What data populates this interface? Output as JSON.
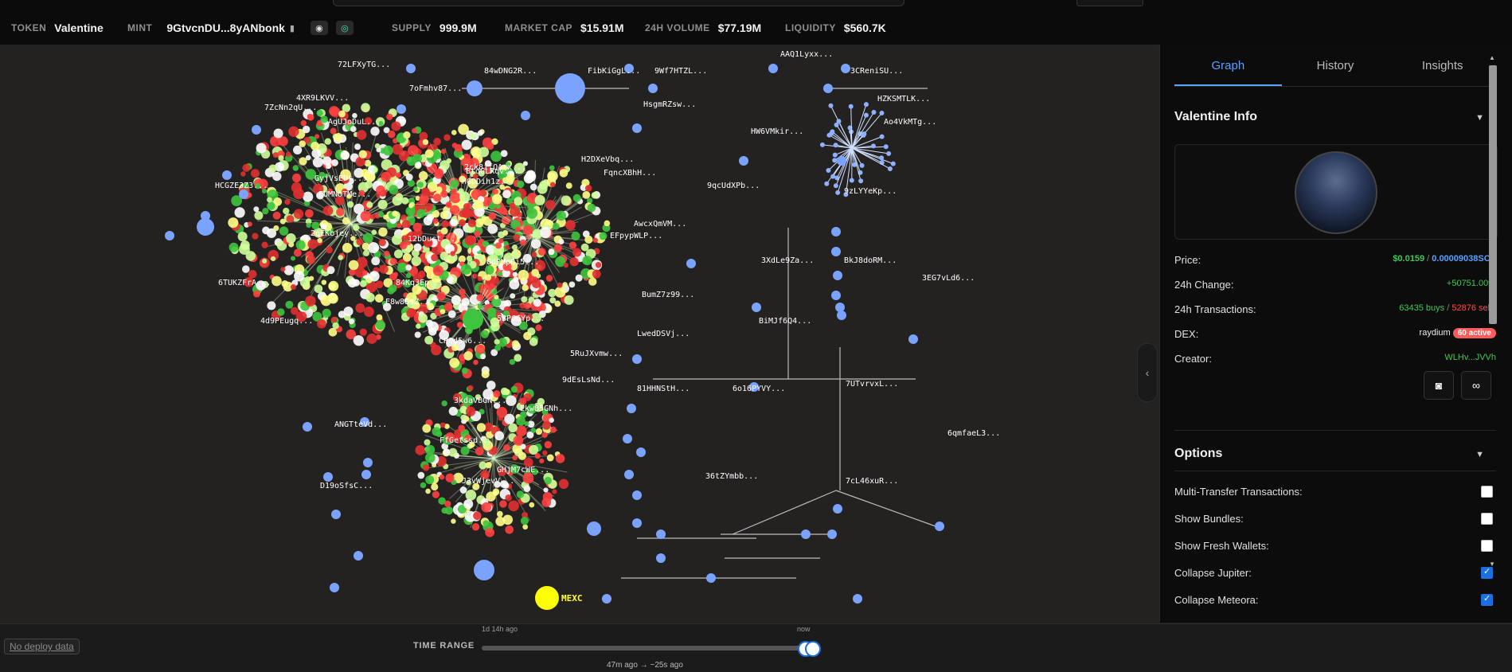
{
  "topbar": {
    "token_label": "TOKEN",
    "token_value": "Valentine",
    "mint_label": "MINT",
    "mint_value": "9GtvcnDU...8yANbonk",
    "supply_label": "SUPPLY",
    "supply_value": "999.9M",
    "mcap_label": "MARKET CAP",
    "mcap_value": "$15.91M",
    "volume_label": "24H VOLUME",
    "volume_value": "$77.19M",
    "liquidity_label": "LIQUIDITY",
    "liquidity_value": "$560.7K"
  },
  "panel": {
    "tabs": [
      "Graph",
      "History",
      "Insights"
    ],
    "info_title": "Valentine Info",
    "price_label": "Price:",
    "price_usd": "$0.0159",
    "price_sep": "/",
    "price_sol": "0.00009038SOL",
    "change_label": "24h Change:",
    "change_value": "+50751.00%",
    "tx_label": "24h Transactions:",
    "tx_buys": "63435 buys",
    "tx_sep": "/",
    "tx_sells": "52876 sells",
    "dex_label": "DEX:",
    "dex_value": "raydium",
    "dex_badge": "60 active",
    "creator_label": "Creator:",
    "creator_value": "WLHv...JVVh",
    "options_title": "Options",
    "options": [
      {
        "label": "Multi-Transfer Transactions:",
        "checked": false
      },
      {
        "label": "Show Bundles:",
        "checked": false
      },
      {
        "label": "Show Fresh Wallets:",
        "checked": false
      },
      {
        "label": "Collapse Jupiter:",
        "checked": true
      },
      {
        "label": "Collapse Meteora:",
        "checked": true
      }
    ]
  },
  "graph": {
    "labels": [
      "72LFXyTG...",
      "84wDNG2R...",
      "FibKiGgL...",
      "9Wf7HTZL...",
      "AAQ1Lyxx...",
      "3CReniSU...",
      "4XR9LKVV...",
      "7ZcNn2qU...",
      "7oFmhv87...",
      "HsgmRZsw...",
      "HZKSMTLK...",
      "Ao4VkMTg...",
      "HW6VMkir...",
      "HCGZE3Z3...",
      "6TUKZFrA...",
      "2ck8ifQArx...",
      "H2DXeVbq...",
      "FqncXBhH...",
      "9qcUdXPb...",
      "9zLYYeKp...",
      "AwcxQmVM...",
      "EFpypWLP...",
      "3XdLe9Za...",
      "BkJ8doRM...",
      "3EG7vLd6...",
      "4d9PEugq...",
      "BumZ7z99...",
      "LwedDSVj...",
      "BiMJf6Q4...",
      "5RuJXvmw...",
      "9dEsLsNd...",
      "81HHNStH...",
      "6o16PYVY...",
      "7UTvrvxL...",
      "ANGTteVd...",
      "FfGetssd...",
      "3kdaVBGN...",
      "J3vWjevV...",
      "7cL46xuR...",
      "6qmfaeL3...",
      "GHjM7cWE...",
      "36tZYmbb...",
      "D19oSfsC...",
      "E8w8SsZ...",
      "84Kq3Ep...",
      "CRQd5w6...",
      "5BP66Yp...",
      "Ekw85GNh...",
      "GdPMpQi5...",
      "HGDDih1z...",
      "BtdGLRqv...",
      "12bDuct...",
      "EUMNoTMe...",
      "AgUJoDuL...",
      "2qEKbjey...",
      "GyjVsEDt..."
    ],
    "mexc_label": "MEXC"
  },
  "bottom": {
    "no_deploy": "No deploy data",
    "time_range_label": "TIME RANGE",
    "start_tick": "1d 14h ago",
    "end_tick": "now",
    "range_text": "47m ago → ~25s ago"
  }
}
